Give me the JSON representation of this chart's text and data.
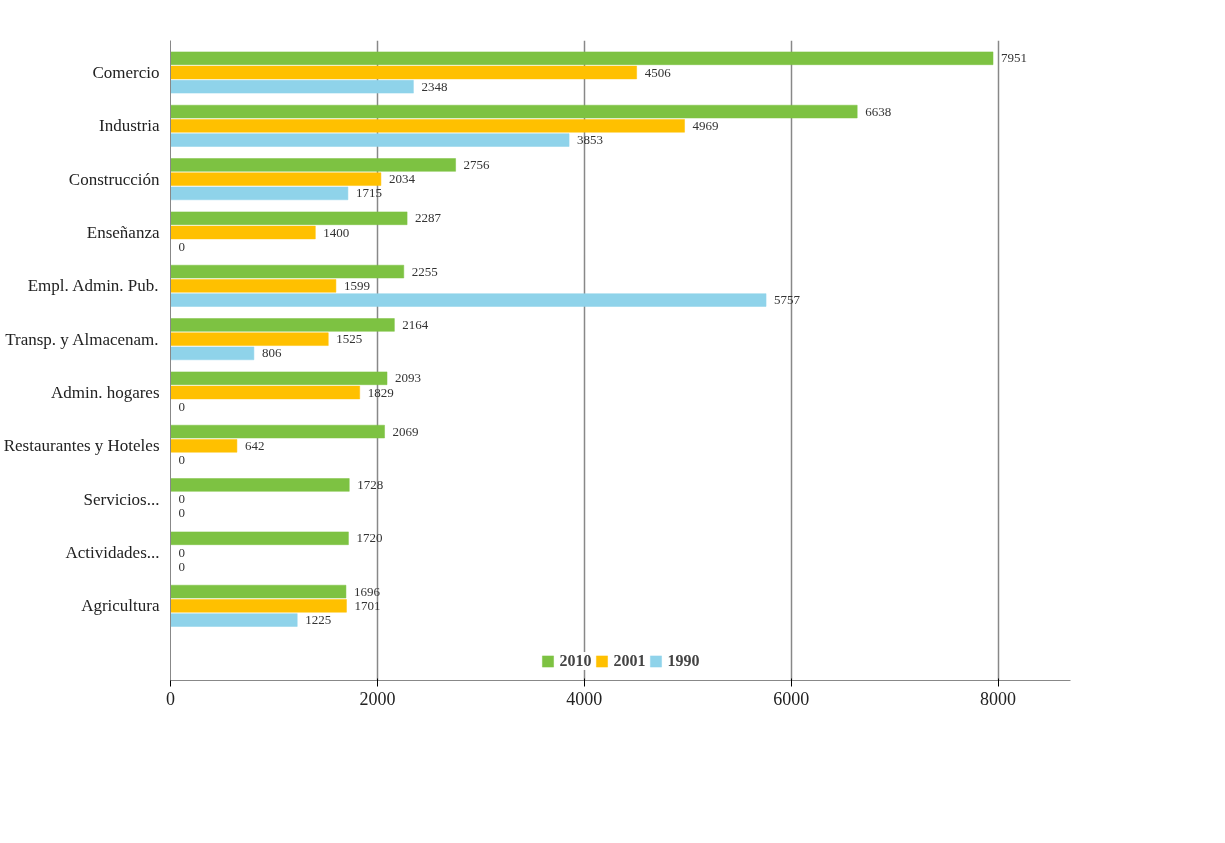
{
  "chart_data": {
    "type": "bar",
    "orientation": "horizontal",
    "categories": [
      "Comercio",
      "Industria",
      "Construcción",
      "Enseñanza",
      "Empl. Admin. Pub.",
      "Transp. y Almacenam.",
      "Admin. hogares",
      "Restaurantes y Hoteles",
      "Servicios...",
      "Actividades...",
      "Agricultura"
    ],
    "series": [
      {
        "name": "2010",
        "color": "#7dc242",
        "values": [
          7951,
          6638,
          2756,
          2287,
          2255,
          2164,
          2093,
          2069,
          1728,
          1720,
          1696
        ]
      },
      {
        "name": "2001",
        "color": "#ffc000",
        "values": [
          4506,
          4969,
          2034,
          1400,
          1599,
          1525,
          1829,
          642,
          0,
          0,
          1701
        ]
      },
      {
        "name": "1990",
        "color": "#8fd3ea",
        "values": [
          2348,
          3853,
          1715,
          0,
          5757,
          806,
          0,
          0,
          0,
          0,
          1225
        ]
      }
    ],
    "xlim": [
      0,
      8700
    ],
    "xticks": [
      0,
      2000,
      4000,
      6000,
      8000
    ],
    "grid": "x",
    "legend": "bottom",
    "data_labels": true
  }
}
